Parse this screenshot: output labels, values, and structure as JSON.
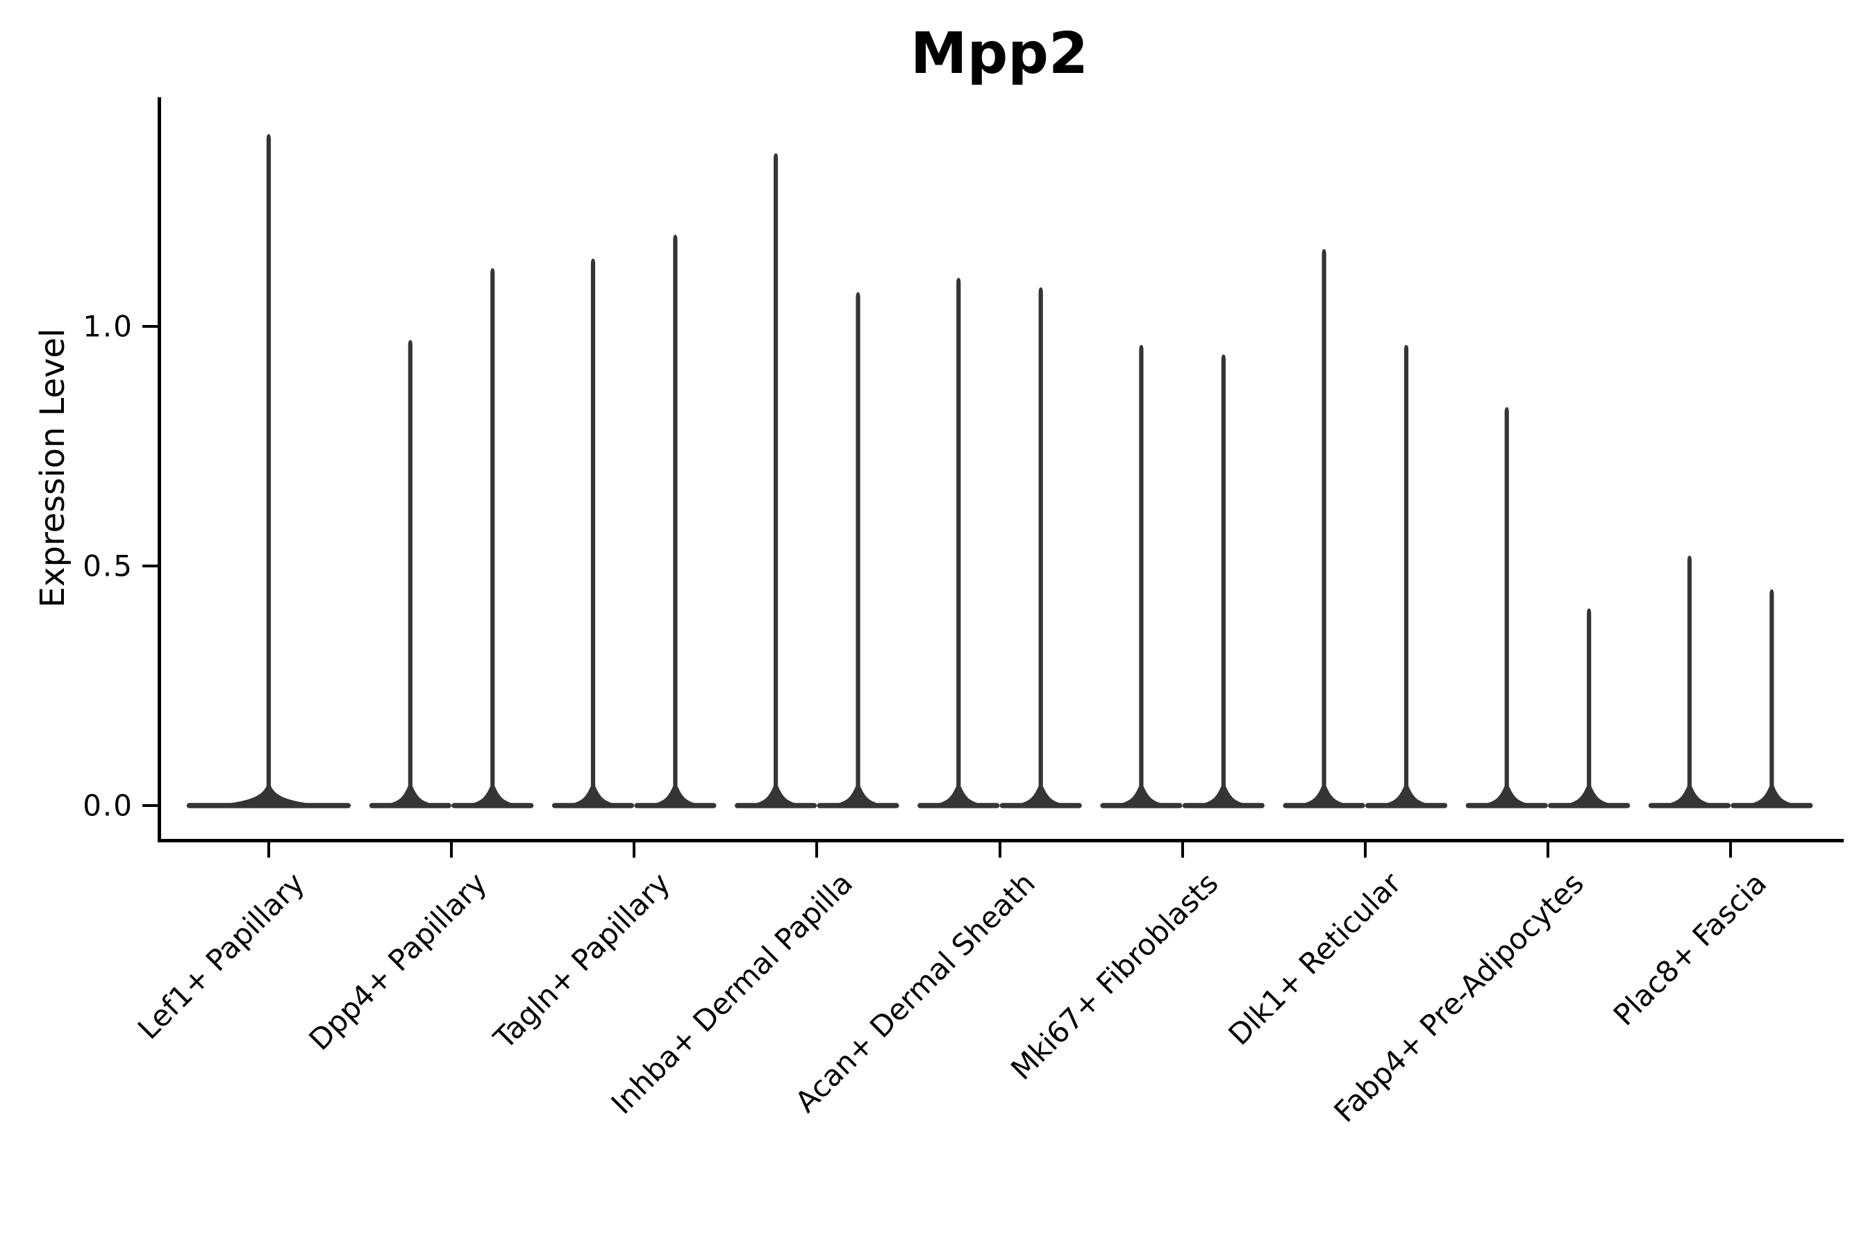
{
  "title": "Mpp2",
  "axes": {
    "y_label": "Expression Level",
    "y_tick_labels": [
      "0.0",
      "0.5",
      "1.0"
    ]
  },
  "style": {
    "violin_color": "#353535",
    "axis_color": "#000000",
    "background": "#ffffff"
  },
  "chart_data": {
    "type": "violin",
    "title": "Mpp2",
    "xlabel": "",
    "ylabel": "Expression Level",
    "ylim": [
      -0.07,
      1.48
    ],
    "y_ticks": [
      0.0,
      0.5,
      1.0
    ],
    "grid": false,
    "legend": "none",
    "note": "Seurat/scanpy-style stacked violin: expression density concentrated at 0 (wide flat base) with a thin spike up to the maximum expression value; first category has one full-width violin, all others have two dodged violins",
    "categories": [
      "Lef1+ Papillary",
      "Dpp4+ Papillary",
      "Tagln+ Papillary",
      "Inhba+ Dermal Papilla",
      "Acan+ Dermal Sheath",
      "Mki67+ Fibroblasts",
      "Dlk1+ Reticular",
      "Fabp4+ Pre-Adipocytes",
      "Plac8+ Fascia"
    ],
    "series": [
      {
        "category": "Lef1+ Papillary",
        "violin_max_values": [
          1.4
        ],
        "mode_value": 0.0
      },
      {
        "category": "Dpp4+ Papillary",
        "violin_max_values": [
          0.97,
          1.12
        ],
        "mode_value": 0.0
      },
      {
        "category": "Tagln+ Papillary",
        "violin_max_values": [
          1.14,
          1.19
        ],
        "mode_value": 0.0
      },
      {
        "category": "Inhba+ Dermal Papilla",
        "violin_max_values": [
          1.36,
          1.07
        ],
        "mode_value": 0.0
      },
      {
        "category": "Acan+ Dermal Sheath",
        "violin_max_values": [
          1.1,
          1.08
        ],
        "mode_value": 0.0
      },
      {
        "category": "Mki67+ Fibroblasts",
        "violin_max_values": [
          0.96,
          0.94
        ],
        "mode_value": 0.0
      },
      {
        "category": "Dlk1+ Reticular",
        "violin_max_values": [
          1.16,
          0.96
        ],
        "mode_value": 0.0
      },
      {
        "category": "Fabp4+ Pre-Adipocytes",
        "violin_max_values": [
          0.83,
          0.41
        ],
        "mode_value": 0.0
      },
      {
        "category": "Plac8+ Fascia",
        "violin_max_values": [
          0.52,
          0.45
        ],
        "mode_value": 0.0
      }
    ]
  }
}
